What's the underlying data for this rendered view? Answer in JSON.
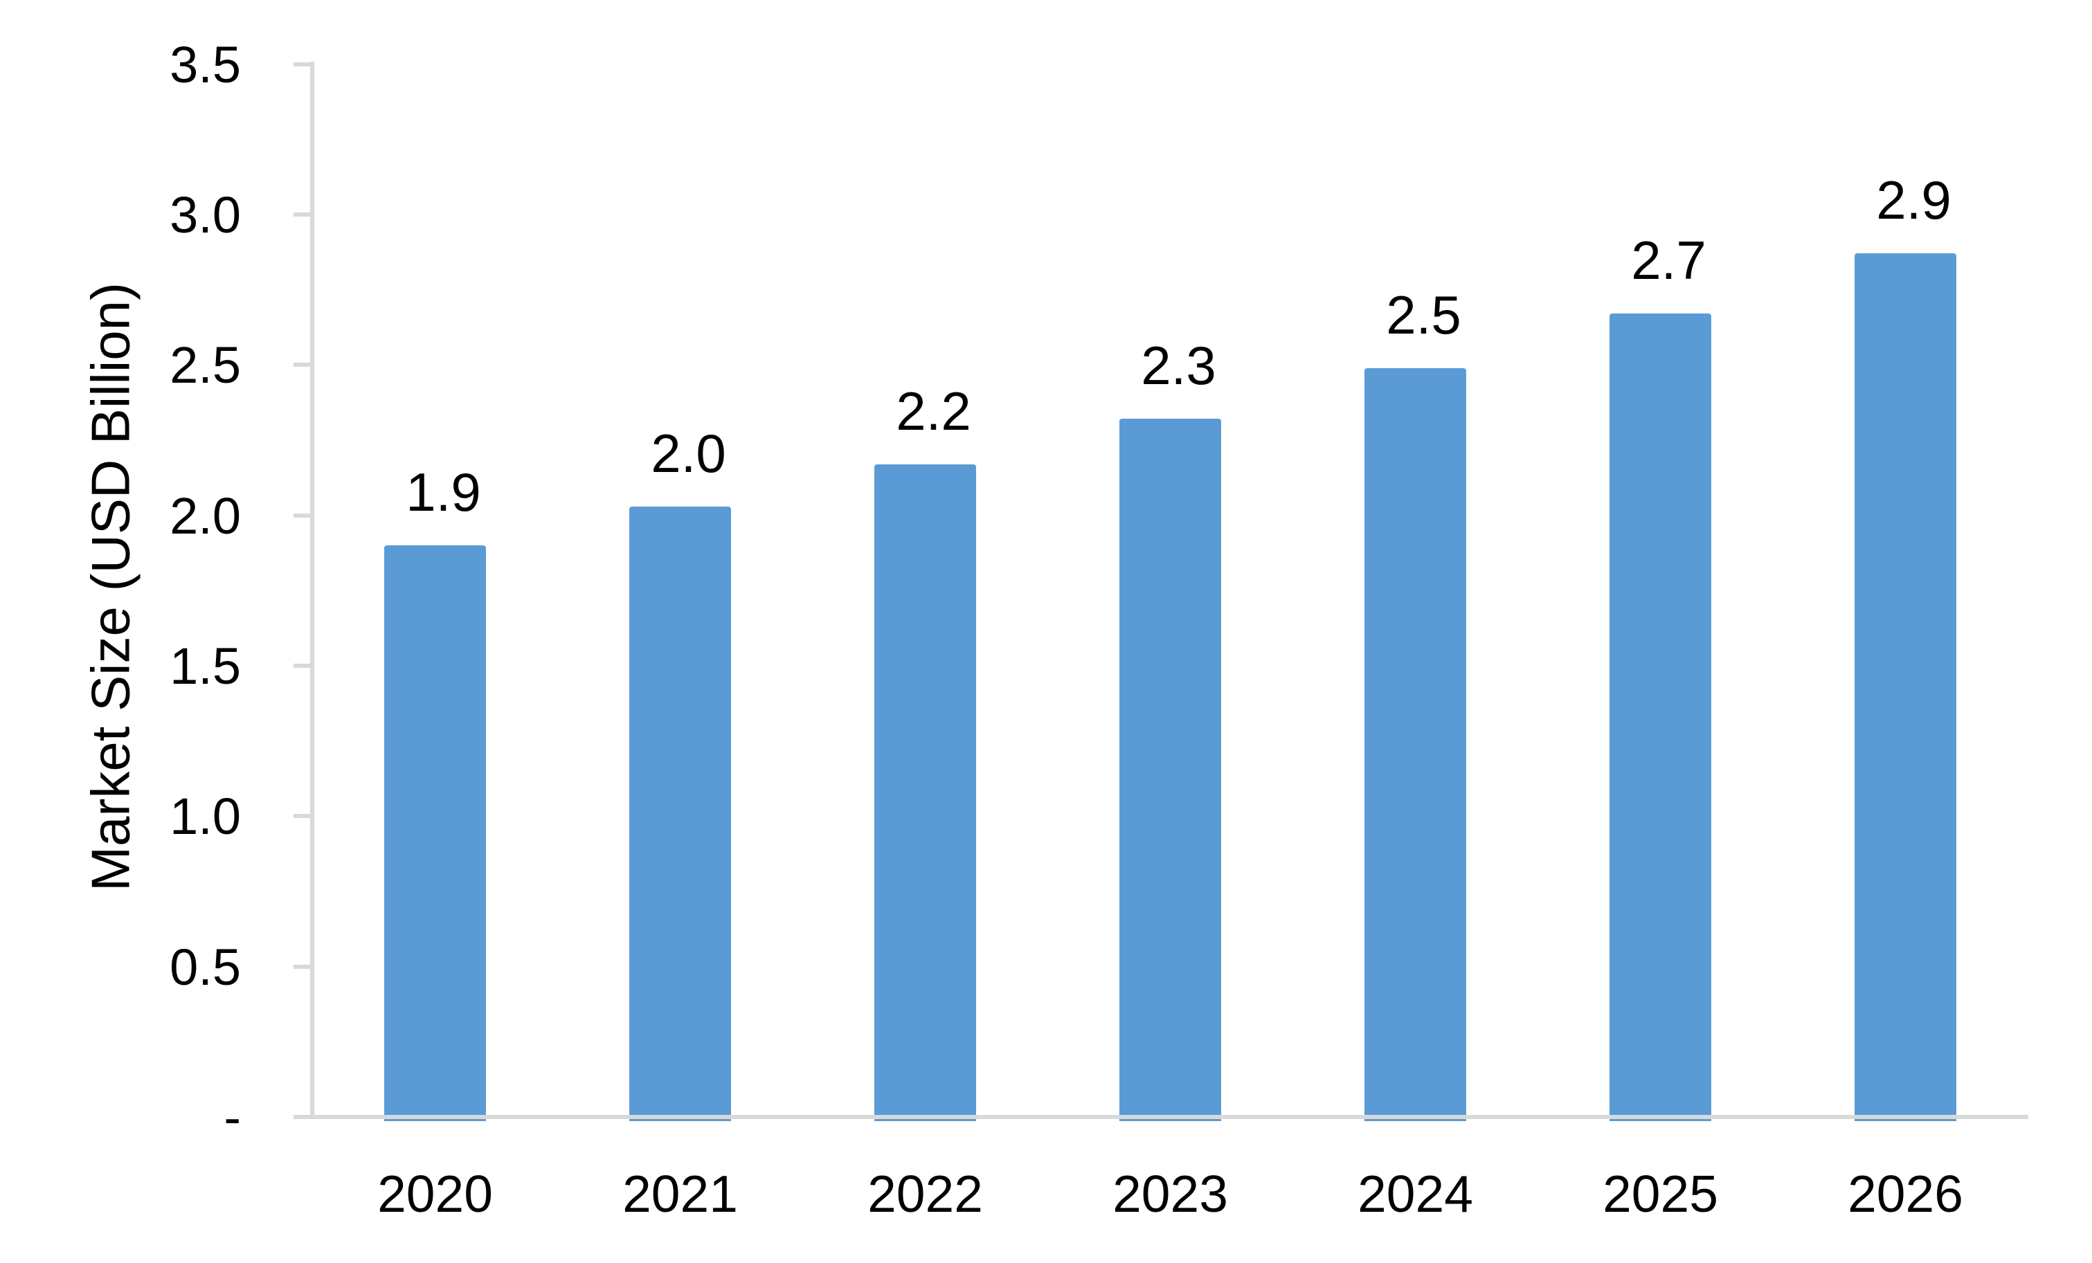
{
  "chart_data": {
    "type": "bar",
    "categories": [
      "2020",
      "2021",
      "2022",
      "2023",
      "2024",
      "2025",
      "2026"
    ],
    "values": [
      1.9,
      2.03,
      2.17,
      2.32,
      2.49,
      2.67,
      2.87
    ],
    "bar_labels": [
      "1.9",
      "2.0",
      "2.2",
      "2.3",
      "2.5",
      "2.7",
      "2.9"
    ],
    "title": "",
    "xlabel": "",
    "ylabel": "Market Size (USD Billion)",
    "ylim": [
      0,
      3.5
    ],
    "ytick_interval": 0.5,
    "ytick_labels_top_to_bottom": [
      "3.5",
      "3.0",
      "2.5",
      "2.0",
      "1.5",
      "1.0",
      "0.5",
      "-"
    ],
    "grid": false,
    "legend": false,
    "bar_color": "#5B9BD5",
    "axis_color": "#D9D9D9",
    "text_color": "#000000",
    "background_color": "#FFFFFF"
  }
}
